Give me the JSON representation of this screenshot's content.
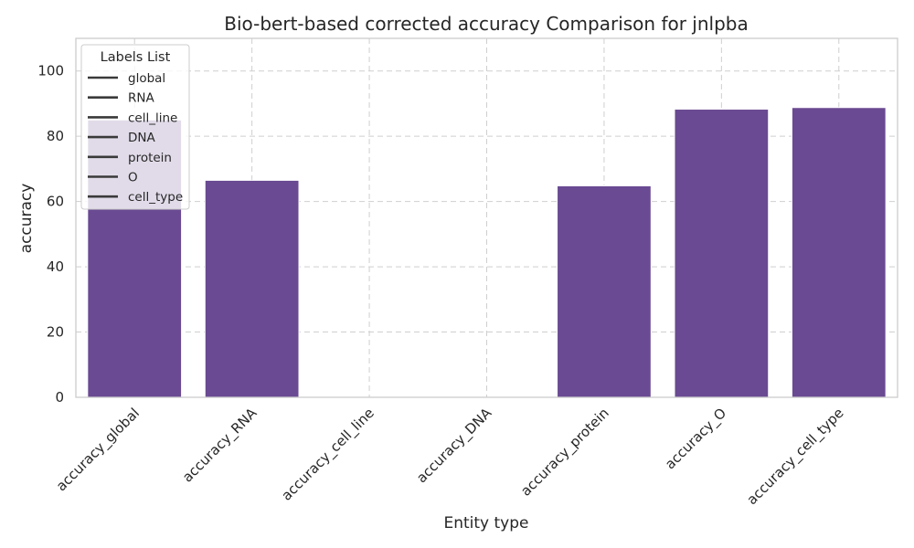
{
  "chart_data": {
    "type": "bar",
    "title": "Bio-bert-based corrected accuracy Comparison for jnlpba",
    "xlabel": "Entity type",
    "ylabel": "accuracy",
    "categories": [
      "accuracy_global",
      "accuracy_RNA",
      "accuracy_cell_line",
      "accuracy_DNA",
      "accuracy_protein",
      "accuracy_O",
      "accuracy_cell_type"
    ],
    "values": [
      85.0,
      66.5,
      0,
      0,
      64.8,
      88.3,
      88.8
    ],
    "ylim": [
      0,
      110
    ],
    "yticks": [
      0,
      20,
      40,
      60,
      80,
      100
    ],
    "grid": true,
    "bar_color": "#6a4a92",
    "legend": {
      "title": "Labels List",
      "placement": "top-left",
      "entries": [
        "global",
        "RNA",
        "cell_line",
        "DNA",
        "protein",
        "O",
        "cell_type"
      ],
      "line_color": "#3a3a3a"
    }
  }
}
